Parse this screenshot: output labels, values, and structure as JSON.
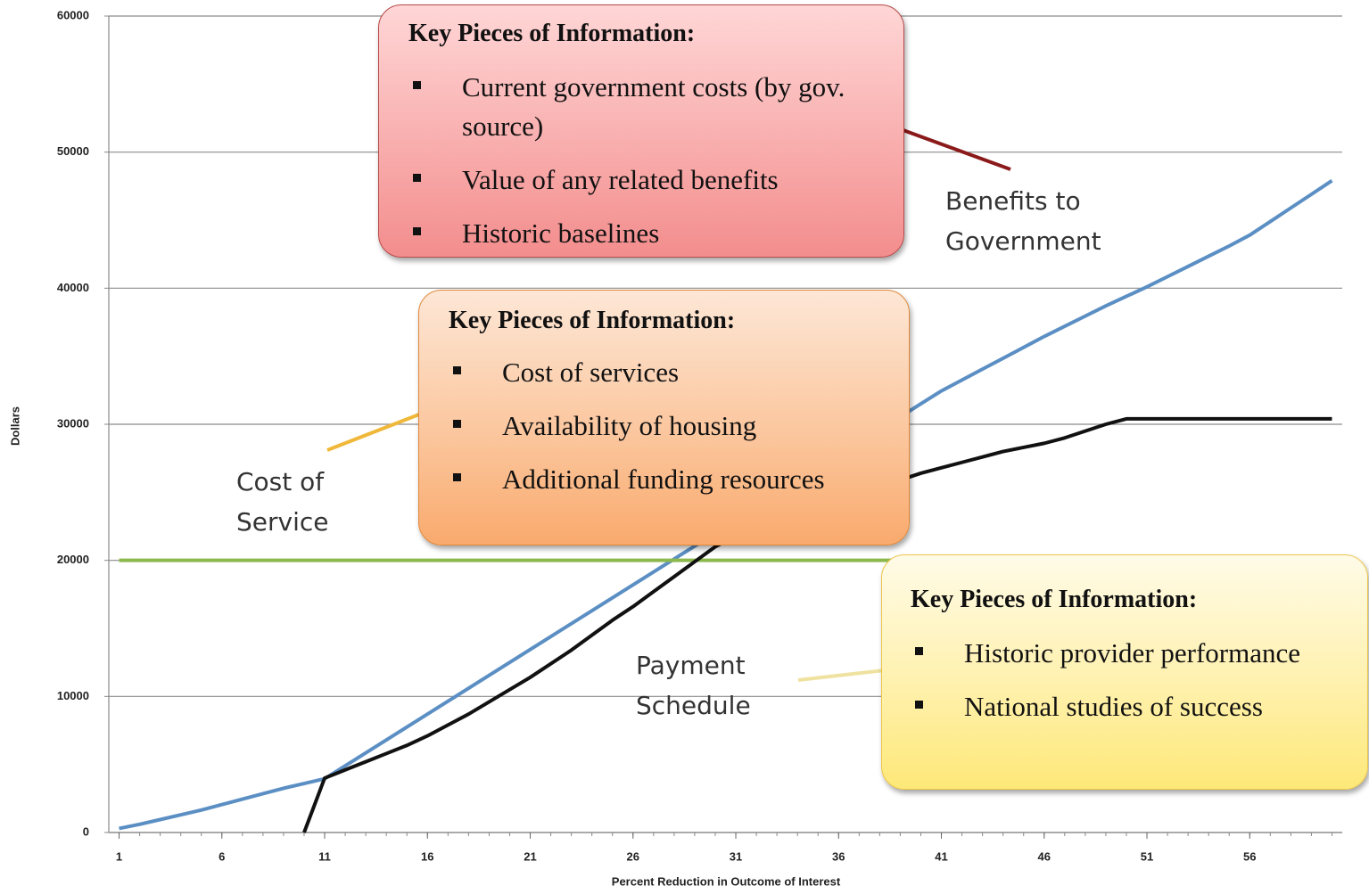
{
  "chart_data": {
    "type": "line",
    "y_label": "Dollars",
    "x_label": "Percent Reduction in Outcome of Interest",
    "x": [
      1,
      2,
      3,
      4,
      5,
      6,
      7,
      8,
      9,
      10,
      11,
      12,
      13,
      14,
      15,
      16,
      17,
      18,
      19,
      20,
      21,
      22,
      23,
      24,
      25,
      26,
      27,
      28,
      29,
      30,
      31,
      32,
      33,
      34,
      35,
      36,
      37,
      38,
      39,
      40,
      41,
      42,
      43,
      44,
      45,
      46,
      47,
      48,
      49,
      50,
      51,
      52,
      53,
      54,
      55,
      56,
      57,
      58,
      59,
      60
    ],
    "xlim": [
      0.5,
      60.5
    ],
    "xticks": [
      1,
      6,
      11,
      16,
      21,
      26,
      31,
      36,
      41,
      46,
      51,
      56
    ],
    "ylim": [
      0,
      60000
    ],
    "yticks": [
      0,
      10000,
      20000,
      30000,
      40000,
      50000,
      60000
    ],
    "grid": true,
    "series": [
      {
        "name": "Benefits to Government",
        "color": "#5b8fc4",
        "values": [
          300,
          600,
          950,
          1300,
          1650,
          2050,
          2450,
          2850,
          3250,
          3600,
          3950,
          4900,
          5850,
          6800,
          7750,
          8700,
          9650,
          10600,
          11550,
          12500,
          13450,
          14400,
          15350,
          16300,
          17250,
          18200,
          19150,
          20100,
          21050,
          22000,
          22950,
          23900,
          24850,
          25800,
          26750,
          27700,
          28650,
          29600,
          30550,
          31500,
          32450,
          33250,
          34050,
          34850,
          35650,
          36450,
          37200,
          37950,
          38700,
          39400,
          40100,
          40850,
          41600,
          42350,
          43100,
          43900,
          44900,
          45900,
          46900,
          47900
        ]
      },
      {
        "name": "Cost of Service",
        "color": "#8cb84e",
        "values": [
          20000,
          20000,
          20000,
          20000,
          20000,
          20000,
          20000,
          20000,
          20000,
          20000,
          20000,
          20000,
          20000,
          20000,
          20000,
          20000,
          20000,
          20000,
          20000,
          20000,
          20000,
          20000,
          20000,
          20000,
          20000,
          20000,
          20000,
          20000,
          20000,
          20000,
          20000,
          20000,
          20000,
          20000,
          20000,
          20000,
          20000,
          20000,
          20000,
          20000,
          20000,
          20000,
          20000,
          20000,
          20000,
          20000,
          20000,
          20000,
          20000,
          20000,
          20000,
          20000,
          20000,
          20000,
          20000,
          20000,
          20000,
          20000,
          20000,
          20000
        ]
      },
      {
        "name": "Payment Schedule",
        "color": "#111111",
        "values": [
          null,
          null,
          null,
          null,
          null,
          null,
          null,
          null,
          null,
          0,
          4000,
          4600,
          5200,
          5800,
          6400,
          7100,
          7900,
          8700,
          9600,
          10500,
          11400,
          12400,
          13400,
          14500,
          15600,
          16600,
          17700,
          18800,
          19900,
          21000,
          21800,
          22400,
          23000,
          23500,
          24000,
          24500,
          25000,
          25500,
          25900,
          26400,
          26800,
          27200,
          27600,
          28000,
          28300,
          28600,
          29000,
          29500,
          30000,
          30400,
          30400,
          30400,
          30400,
          30400,
          30400,
          30400,
          30400,
          30400,
          30400,
          30400
        ]
      }
    ],
    "annotations": [
      {
        "lines": [
          "Benefits to",
          "Government"
        ]
      },
      {
        "lines": [
          "Cost of",
          "Service"
        ]
      },
      {
        "lines": [
          "Payment",
          "Schedule"
        ]
      }
    ],
    "callouts": [
      {
        "title": "Key Pieces of Information:",
        "items": [
          "Current government costs (by gov. source)",
          "Value of any related benefits",
          "Historic baselines"
        ]
      },
      {
        "title": "Key Pieces of Information:",
        "items": [
          "Cost of services",
          "Availability of housing",
          "Additional funding resources"
        ]
      },
      {
        "title": "Key Pieces of Information:",
        "items": [
          "Historic provider performance",
          "National studies of success"
        ]
      }
    ]
  }
}
